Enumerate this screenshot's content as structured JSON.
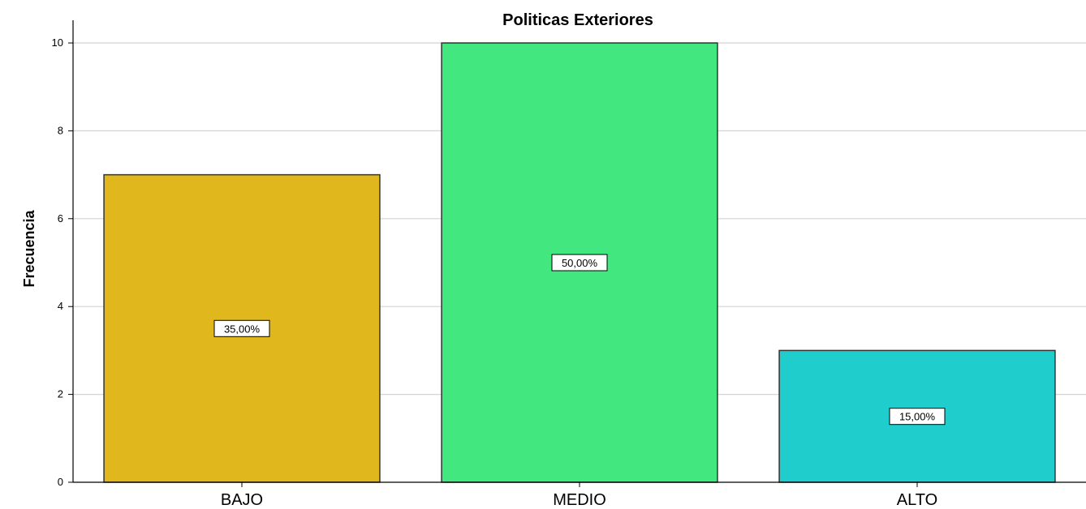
{
  "chart_data": {
    "type": "bar",
    "title": "Politicas Exteriores",
    "xlabel": "",
    "ylabel": "Frecuencia",
    "categories": [
      "BAJO",
      "MEDIO",
      "ALTO"
    ],
    "values": [
      7,
      10,
      3
    ],
    "data_labels": [
      "35,00%",
      "50,00%",
      "15,00%"
    ],
    "colors": [
      "#e0b81e",
      "#42e87f",
      "#1fcdcd"
    ],
    "ylim": [
      0,
      10
    ],
    "yticks": [
      "0",
      "2",
      "4",
      "6",
      "8",
      "10"
    ],
    "grid": true,
    "legend": "none"
  }
}
